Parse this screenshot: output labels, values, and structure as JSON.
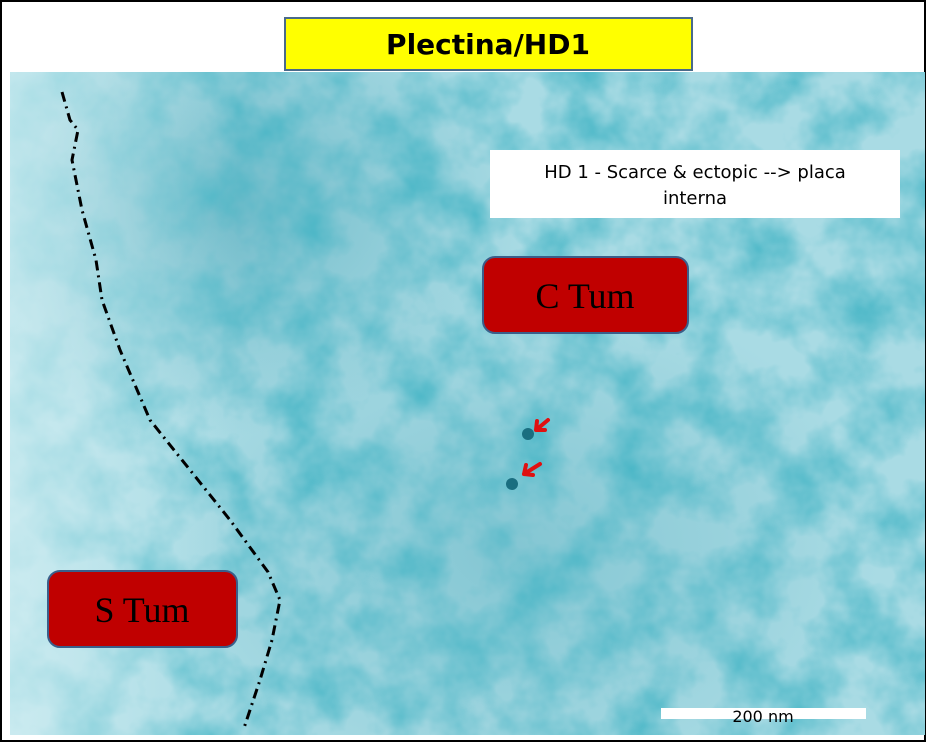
{
  "header": {
    "title": "Plectina/HD1"
  },
  "note": "HD 1 - Scarce & ectopic --> placa interna",
  "labels": [
    "C Tum",
    "S Tum"
  ],
  "scale_bar": "200 nm"
}
